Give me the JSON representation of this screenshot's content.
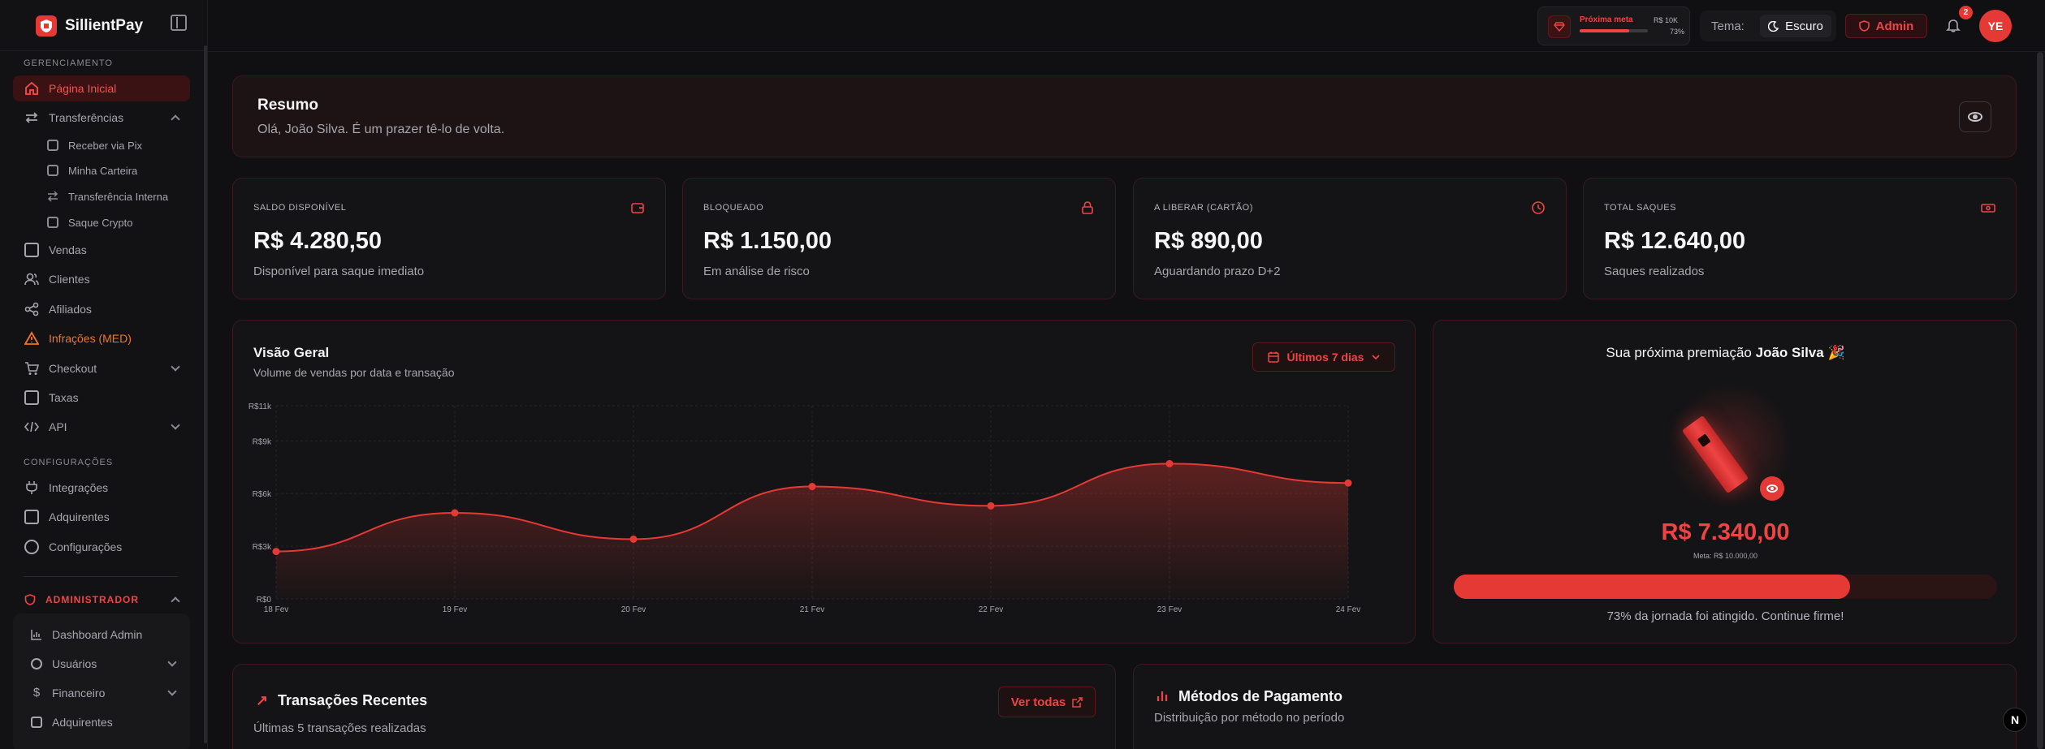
{
  "brand": {
    "name": "SillientPay"
  },
  "sidebar": {
    "section_management": "GERENCIAMENTO",
    "items": [
      {
        "label": "Página Inicial",
        "icon": "home-icon"
      },
      {
        "label": "Transferências",
        "icon": "arrows-icon"
      },
      {
        "label": "Vendas",
        "icon": "document-icon"
      },
      {
        "label": "Clientes",
        "icon": "users-icon"
      },
      {
        "label": "Afiliados",
        "icon": "share-icon"
      },
      {
        "label": "Infrações (MED)",
        "icon": "warning-icon"
      },
      {
        "label": "Checkout",
        "icon": "cart-icon"
      },
      {
        "label": "Taxas",
        "icon": "receipt-icon"
      },
      {
        "label": "API",
        "icon": "code-icon"
      }
    ],
    "transfer_sub": [
      "Receber via Pix",
      "Minha Carteira",
      "Transferência Interna",
      "Saque Crypto"
    ],
    "section_config": "CONFIGURAÇÕES",
    "config_items": [
      "Integrações",
      "Adquirentes",
      "Configurações"
    ],
    "admin_label": "ADMINISTRADOR",
    "admin_items": [
      "Dashboard Admin",
      "Usuários",
      "Financeiro",
      "Adquirentes"
    ]
  },
  "header": {
    "meta_title": "Próxima meta",
    "meta_amount": "R$ 10K",
    "meta_pct": "73%",
    "meta_progress": 0.73,
    "theme_label": "Tema:",
    "theme_value": "Escuro",
    "admin_button": "Admin",
    "notif_count": "2",
    "avatar_initials": "YE"
  },
  "resumo": {
    "title": "Resumo",
    "greeting": "Olá, João Silva. É um prazer tê-lo de volta."
  },
  "stats": [
    {
      "label": "SALDO DISPONÍVEL",
      "value": "R$ 4.280,50",
      "sub": "Disponível para saque imediato",
      "icon": "wallet-icon"
    },
    {
      "label": "BLOQUEADO",
      "value": "R$ 1.150,00",
      "sub": "Em análise de risco",
      "icon": "lock-icon"
    },
    {
      "label": "A LIBERAR (CARTÃO)",
      "value": "R$ 890,00",
      "sub": "Aguardando prazo D+2",
      "icon": "clock-icon"
    },
    {
      "label": "TOTAL SAQUES",
      "value": "R$ 12.640,00",
      "sub": "Saques realizados",
      "icon": "cash-icon"
    }
  ],
  "overview": {
    "title": "Visão Geral",
    "subtitle": "Volume de vendas por data e transação",
    "range_button": "Últimos 7 dias"
  },
  "chart_data": {
    "type": "area",
    "categories": [
      "18 Fev",
      "19 Fev",
      "20 Fev",
      "21 Fev",
      "22 Fev",
      "23 Fev",
      "24 Fev"
    ],
    "values": [
      2700,
      4900,
      3400,
      6400,
      5300,
      7700,
      6600
    ],
    "y_ticks": [
      0,
      3000,
      6000,
      9000,
      11000
    ],
    "y_tick_labels": [
      "R$0",
      "R$3k",
      "R$6k",
      "R$9k",
      "R$11k"
    ],
    "ylim": [
      0,
      11000
    ],
    "grid": true,
    "color": "#e53935"
  },
  "award": {
    "title_prefix": "Sua próxima premiação",
    "user": "João Silva",
    "emoji": "🎉",
    "value": "R$ 7.340,00",
    "meta": "Meta: R$ 10.000,00",
    "progress": 0.73,
    "note": "73% da jornada foi atingido. Continue firme!"
  },
  "transactions": {
    "title": "Transações Recentes",
    "subtitle": "Últimas 5 transações realizadas",
    "button": "Ver todas"
  },
  "payments": {
    "title": "Métodos de Pagamento",
    "subtitle": "Distribuição por método no período"
  },
  "dev_badge": "N"
}
